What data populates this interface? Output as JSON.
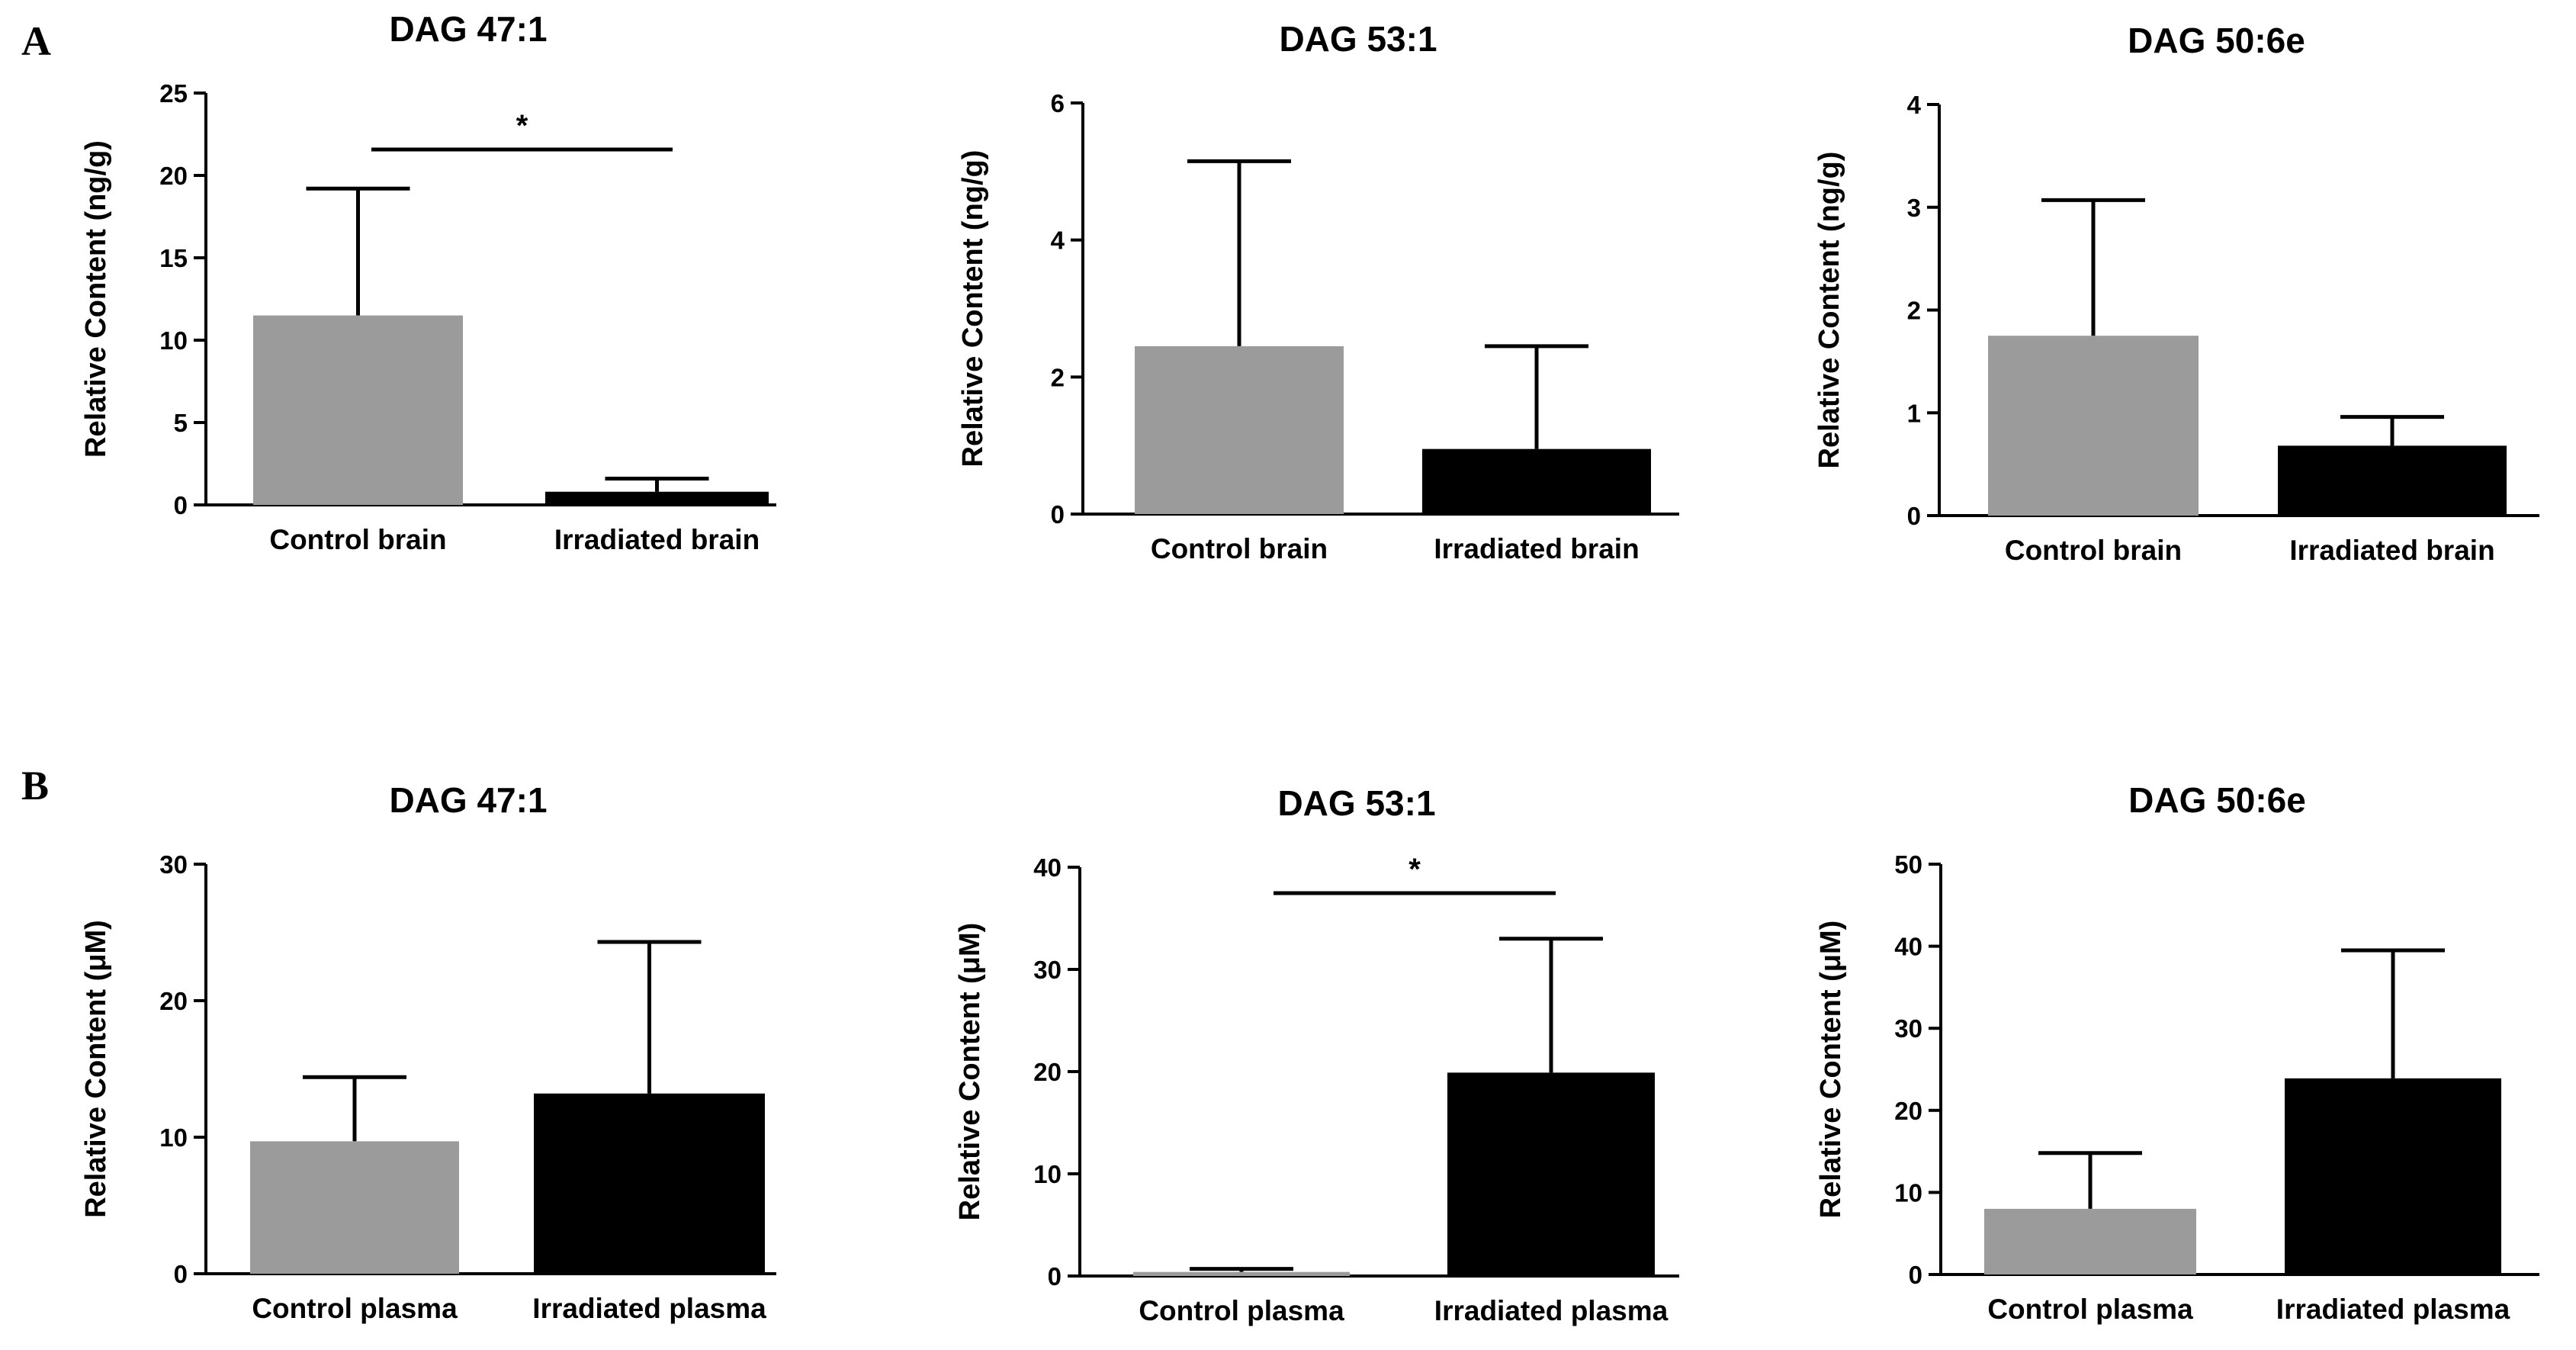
{
  "panels": [
    "A",
    "B"
  ],
  "chart_data": [
    {
      "type": "bar",
      "panel": "A",
      "title": "DAG 47:1",
      "ylabel": "Relative Content (ng/g)",
      "ylim": [
        0,
        25
      ],
      "yticks": [
        0,
        5,
        10,
        15,
        20,
        25
      ],
      "ytick_labels": [
        "0",
        "5",
        "10",
        "15",
        "20",
        "25"
      ],
      "categories": [
        "Control brain",
        "Irradiated brain"
      ],
      "values": [
        11.5,
        0.8
      ],
      "errors": [
        7.7,
        0.8
      ],
      "bar_colors": [
        "#9b9b9b",
        "#000000"
      ],
      "significance": "*"
    },
    {
      "type": "bar",
      "panel": "A",
      "title": "DAG 53:1",
      "ylabel": "Relative Content (ng/g)",
      "ylim": [
        0,
        6
      ],
      "yticks": [
        0,
        2,
        4,
        6
      ],
      "ytick_labels": [
        "0",
        "2",
        "4",
        "6"
      ],
      "categories": [
        "Control brain",
        "Irradiated brain"
      ],
      "values": [
        2.45,
        0.95
      ],
      "errors": [
        2.7,
        1.5
      ],
      "bar_colors": [
        "#9b9b9b",
        "#000000"
      ],
      "significance": ""
    },
    {
      "type": "bar",
      "panel": "A",
      "title": "DAG 50:6e",
      "ylabel": "Relative Content (ng/g)",
      "ylim": [
        0,
        4
      ],
      "yticks": [
        0,
        1,
        2,
        3,
        4
      ],
      "ytick_labels": [
        "0",
        "1",
        "2",
        "3",
        "4"
      ],
      "categories": [
        "Control brain",
        "Irradiated brain"
      ],
      "values": [
        1.75,
        0.68
      ],
      "errors": [
        1.32,
        0.28
      ],
      "bar_colors": [
        "#9b9b9b",
        "#000000"
      ],
      "significance": ""
    },
    {
      "type": "bar",
      "panel": "B",
      "title": "DAG 47:1",
      "ylabel": "Relative Content (μM)",
      "ylim": [
        0,
        30
      ],
      "yticks": [
        0,
        10,
        20,
        30
      ],
      "ytick_labels": [
        "0",
        "10",
        "20",
        "30"
      ],
      "categories": [
        "Control plasma",
        "Irradiated plasma"
      ],
      "values": [
        9.7,
        13.2
      ],
      "errors": [
        4.7,
        11.1
      ],
      "bar_colors": [
        "#9b9b9b",
        "#000000"
      ],
      "significance": ""
    },
    {
      "type": "bar",
      "panel": "B",
      "title": "DAG 53:1",
      "ylabel": "Relative Content (μM)",
      "ylim": [
        0,
        40
      ],
      "yticks": [
        0,
        10,
        20,
        30,
        40
      ],
      "ytick_labels": [
        "0",
        "10",
        "20",
        "30",
        "40"
      ],
      "categories": [
        "Control plasma",
        "Irradiated plasma"
      ],
      "values": [
        0.4,
        19.9
      ],
      "errors": [
        0.3,
        13.1
      ],
      "bar_colors": [
        "#9b9b9b",
        "#000000"
      ],
      "significance": "*"
    },
    {
      "type": "bar",
      "panel": "B",
      "title": "DAG 50:6e",
      "ylabel": "Relative Content (μM)",
      "ylim": [
        0,
        50
      ],
      "yticks": [
        0,
        10,
        20,
        30,
        40,
        50
      ],
      "ytick_labels": [
        "0",
        "10",
        "20",
        "30",
        "40",
        "50"
      ],
      "categories": [
        "Control plasma",
        "Irradiated plasma"
      ],
      "values": [
        8.0,
        23.9
      ],
      "errors": [
        6.8,
        15.6
      ],
      "bar_colors": [
        "#9b9b9b",
        "#000000"
      ],
      "significance": ""
    }
  ]
}
